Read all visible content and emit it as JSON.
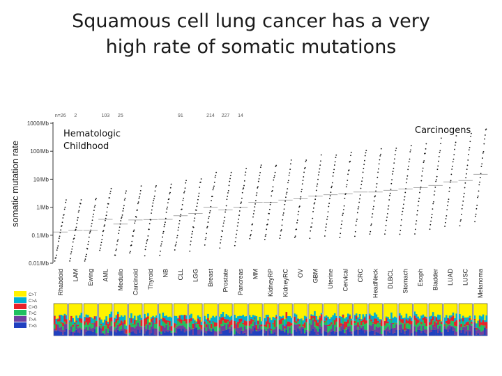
{
  "slide": {
    "title_line1": "Squamous cell lung cancer has a very",
    "title_line2": "high rate of somatic mutations"
  },
  "annotations": {
    "left_line1": "Hematologic",
    "left_line2": "Childhood",
    "right": "Carcinogens"
  },
  "chart_data": {
    "type": "scatter",
    "ylabel": "somatic mutation rate",
    "y_scale": "log",
    "ylim": [
      0.01,
      1000
    ],
    "yticks": [
      "1000/Mb",
      "100/Mb",
      "10/Mb",
      "1/Mb",
      "0.1/Mb",
      "0.01/Mb"
    ],
    "categories": [
      "Rhabdoid",
      "LAM",
      "Ewing",
      "AML",
      "Medullo",
      "Carcinoid",
      "Thyroid",
      "NB",
      "CLL",
      "LGG",
      "Breast",
      "Prostate",
      "Pancreas",
      "MM",
      "KidneyRP",
      "KidneyRC",
      "OV",
      "GBM",
      "Uterine",
      "Cervical",
      "CRC",
      "HeadNeck",
      "DLBCL",
      "Stomach",
      "Esoph",
      "Bladder",
      "LUAD",
      "LUSC",
      "Melanoma"
    ],
    "sample_counts": [
      "n=26",
      "2",
      "",
      "103",
      "25",
      "",
      "",
      "",
      "91",
      "",
      "214",
      "227",
      "14",
      "",
      "",
      "",
      "",
      "",
      "",
      "",
      "",
      "",
      "",
      "",
      "",
      "",
      "",
      "",
      ""
    ],
    "median_rates": [
      0.13,
      0.15,
      0.15,
      0.37,
      0.25,
      0.35,
      0.36,
      0.37,
      0.5,
      0.6,
      1.0,
      0.8,
      1.0,
      1.5,
      1.5,
      1.8,
      2.0,
      2.5,
      2.8,
      3.0,
      3.5,
      3.5,
      4.0,
      4.5,
      5.0,
      6.0,
      8.0,
      9.0,
      15.0
    ],
    "legend": [
      "C>T",
      "C>A",
      "C>G",
      "T>C",
      "T>A",
      "T>G"
    ],
    "legend_colors": [
      "#fff200",
      "#00b0d0",
      "#e8202a",
      "#20c060",
      "#7040a0",
      "#2040c0"
    ],
    "tick_color": "#555555",
    "dot_color": "#111111",
    "median_color": "#aaaaaa"
  }
}
